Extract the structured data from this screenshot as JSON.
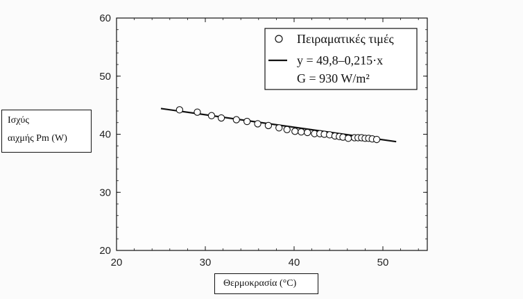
{
  "chart_data": {
    "type": "scatter",
    "title": "",
    "xlabel": "Θερμοκρασία (°C)",
    "ylabel_line1": "Ισχύς",
    "ylabel_line2": "αιχμής Pm (W)",
    "xlim": [
      20,
      55
    ],
    "ylim": [
      20,
      60
    ],
    "xticks": [
      20,
      30,
      40,
      50
    ],
    "yticks": [
      20,
      30,
      40,
      50,
      60
    ],
    "grid": false,
    "legend": {
      "placement": "top-right",
      "entries": [
        {
          "label": "Πειραματικές τιμές",
          "marker": "circle"
        },
        {
          "label": "y = 49,8–0,215·x",
          "marker": "line"
        },
        {
          "label": "G = 930 W/m²",
          "marker": "none"
        }
      ]
    },
    "series": [
      {
        "kind": "points",
        "x": [
          27.1,
          29.1,
          30.7,
          31.8,
          33.5,
          34.7,
          35.9,
          37.1,
          38.3,
          39.2,
          40.1,
          40.8,
          41.5,
          42.3,
          42.9,
          43.4,
          44.0,
          44.6,
          45.1,
          45.5,
          46.1,
          46.8,
          47.2,
          47.6,
          48.0,
          48.4,
          48.8,
          49.3
        ],
        "y": [
          44.2,
          43.8,
          43.2,
          42.8,
          42.5,
          42.2,
          41.8,
          41.5,
          41.1,
          40.8,
          40.5,
          40.4,
          40.3,
          40.1,
          40.1,
          40.0,
          39.9,
          39.7,
          39.6,
          39.5,
          39.3,
          39.4,
          39.4,
          39.4,
          39.3,
          39.3,
          39.2,
          39.1
        ]
      },
      {
        "kind": "fit-line",
        "intercept": 49.8,
        "slope": -0.215,
        "x": [
          25,
          51.5
        ]
      }
    ]
  }
}
